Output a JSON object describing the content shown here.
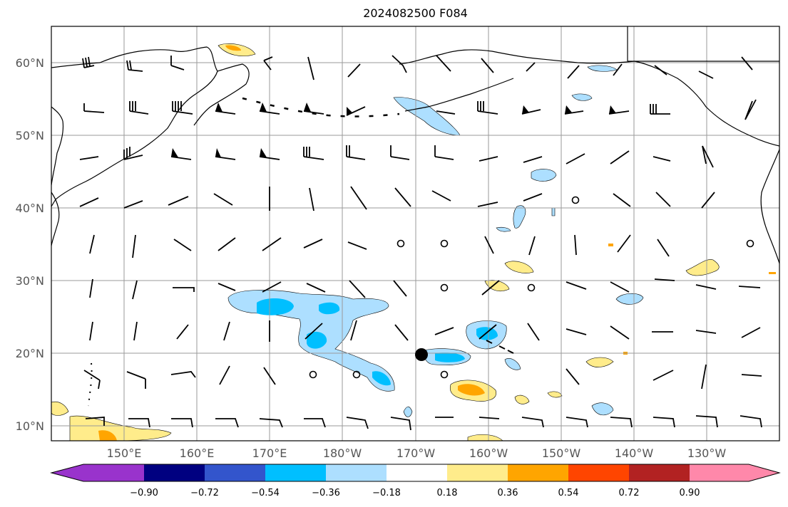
{
  "title": "2024082500 F084",
  "latitude_labels": [
    "10°N",
    "20°N",
    "30°N",
    "40°N",
    "50°N",
    "60°N"
  ],
  "longitude_labels": [
    "150°E",
    "160°E",
    "170°E",
    "180°W",
    "170°W",
    "160°W",
    "150°W",
    "140°W",
    "130°W"
  ],
  "colorbar": {
    "tick_labels": [
      "−0.90",
      "−0.72",
      "−0.54",
      "−0.36",
      "−0.18",
      "0.18",
      "0.36",
      "0.54",
      "0.72",
      "0.90"
    ],
    "colors": [
      "#9933cc",
      "#000080",
      "#3355cc",
      "#00bfff",
      "#addfff",
      "#ffffff",
      "#ffec8b",
      "#ffa500",
      "#ff4500",
      "#b22222",
      "#ff88aa"
    ]
  },
  "colors": {
    "grid": "#9a9a9a",
    "coast": "#000000",
    "negative_light": "#addfff",
    "negative_mid": "#00bfff",
    "positive_light": "#ffec8b",
    "positive_mid": "#ffa500"
  }
}
